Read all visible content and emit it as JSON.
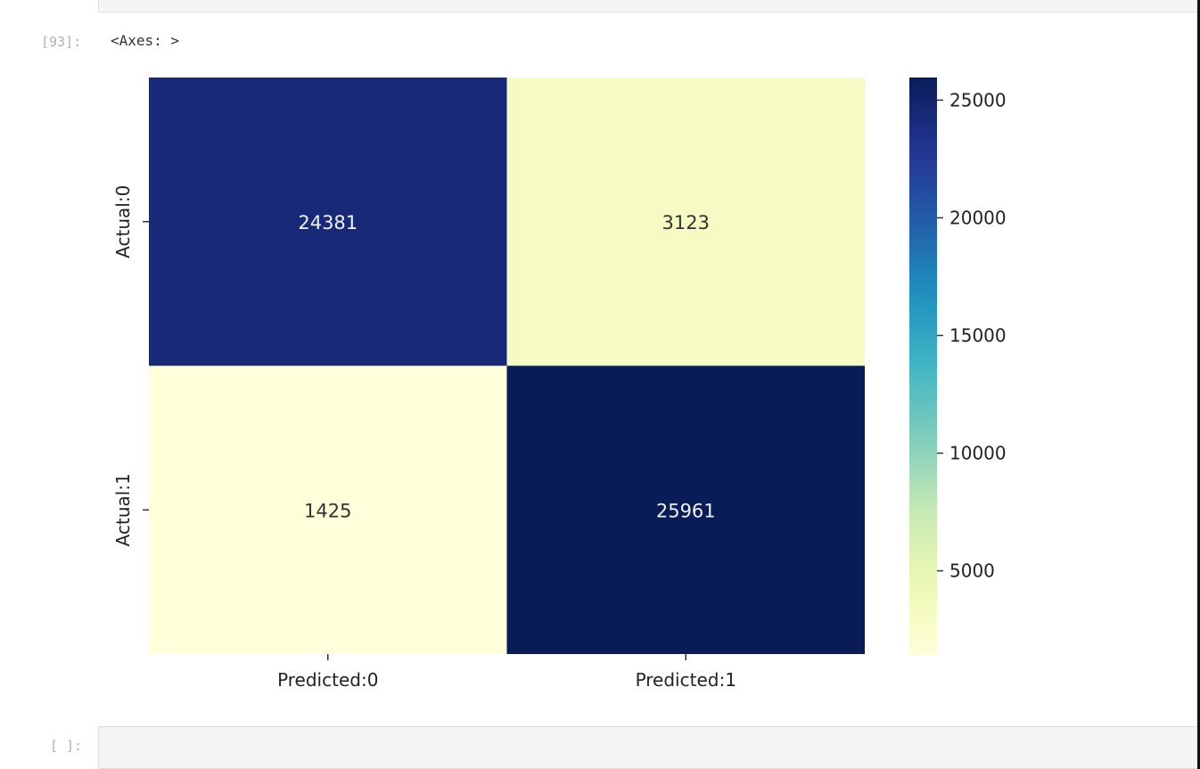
{
  "prev_cell": {
    "code_fragment": ""
  },
  "output_cell": {
    "prompt": "[93]:",
    "repr_text": "<Axes: >"
  },
  "next_cell": {
    "prompt": "[ ]:"
  },
  "chart_data": {
    "type": "heatmap",
    "title": "",
    "xlabel": "",
    "ylabel": "",
    "x_tick_labels": [
      "Predicted:0",
      "Predicted:1"
    ],
    "y_tick_labels": [
      "Actual:0",
      "Actual:1"
    ],
    "values": [
      [
        24381,
        3123
      ],
      [
        1425,
        25961
      ]
    ],
    "annotations": [
      [
        "24381",
        "3123"
      ],
      [
        "1425",
        "25961"
      ]
    ],
    "colormap": "YlGnBu",
    "colorbar": {
      "range": [
        1425,
        25961
      ],
      "ticks": [
        5000,
        10000,
        15000,
        20000,
        25000
      ],
      "tick_labels": [
        "5000",
        "10000",
        "15000",
        "20000",
        "25000"
      ]
    },
    "grid": false,
    "legend": "none"
  }
}
